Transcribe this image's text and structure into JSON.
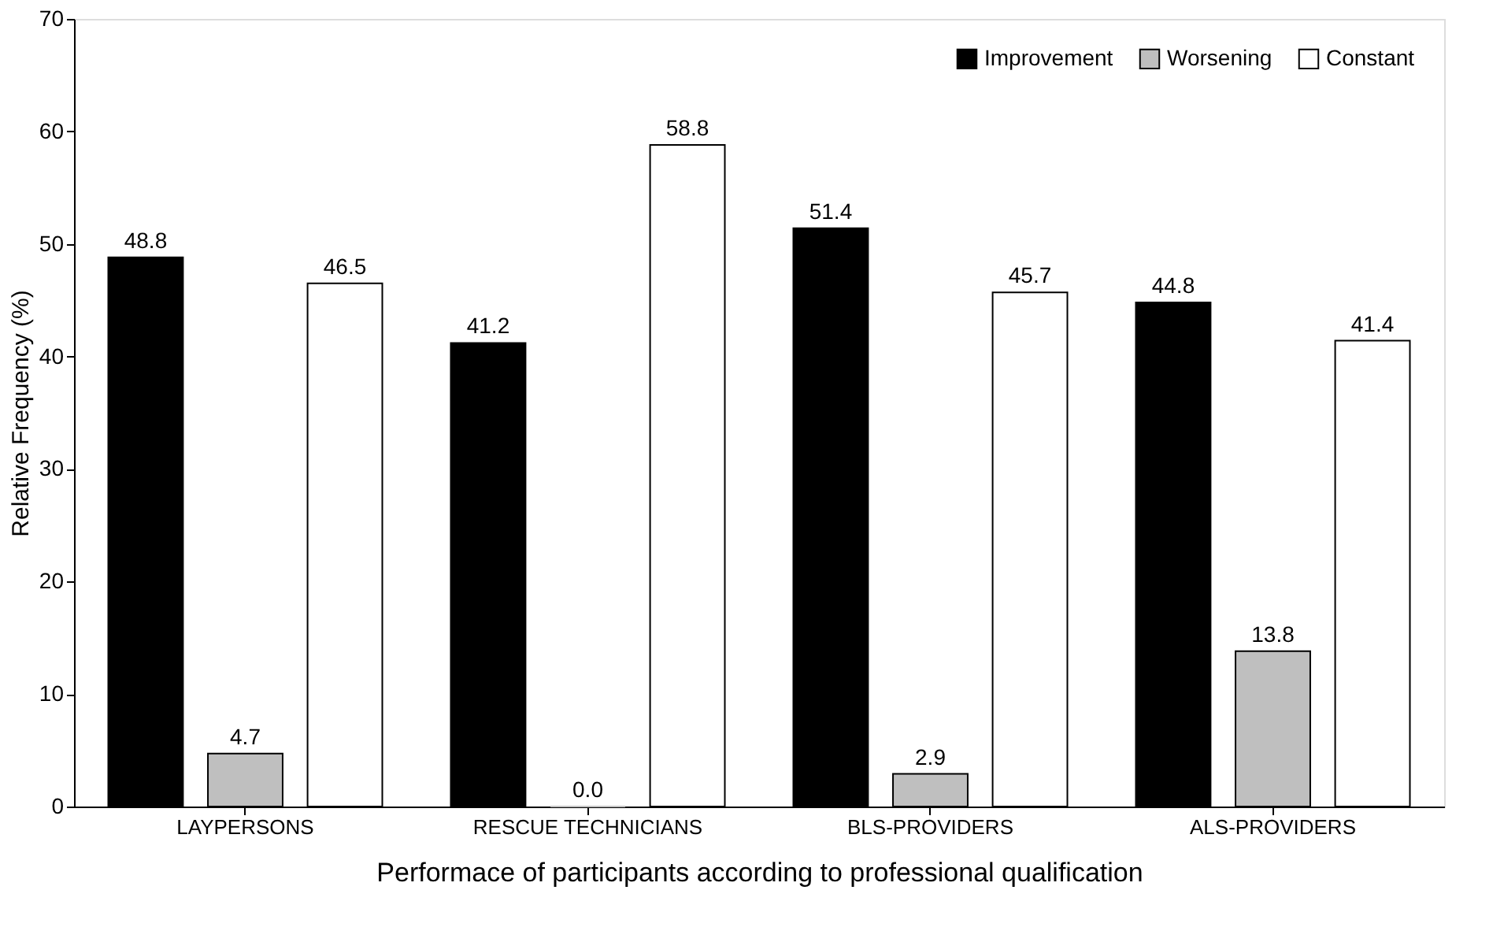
{
  "chart_data": {
    "type": "bar",
    "xlabel": "Performace of participants according to professional qualification",
    "ylabel": "Relative Frequency (%)",
    "categories": [
      "LAYPERSONS",
      "RESCUE TECHNICIANS",
      "BLS-PROVIDERS",
      "ALS-PROVIDERS"
    ],
    "series": [
      {
        "name": "Improvement",
        "color": "#000000",
        "values": [
          48.8,
          41.2,
          51.4,
          44.8
        ]
      },
      {
        "name": "Worsening",
        "color": "#bfbfbf",
        "values": [
          4.7,
          0.0,
          2.9,
          13.8
        ],
        "value_labels": [
          "4.7",
          "0.0",
          "2.9",
          "13.8"
        ]
      },
      {
        "name": "Constant",
        "color": "#ffffff",
        "values": [
          46.5,
          58.8,
          45.7,
          41.4
        ]
      }
    ],
    "ylim": [
      0,
      70
    ],
    "yticks": [
      0,
      10,
      20,
      30,
      40,
      50,
      60,
      70
    ],
    "grid": false,
    "legend": "top right",
    "data_labels": true
  }
}
